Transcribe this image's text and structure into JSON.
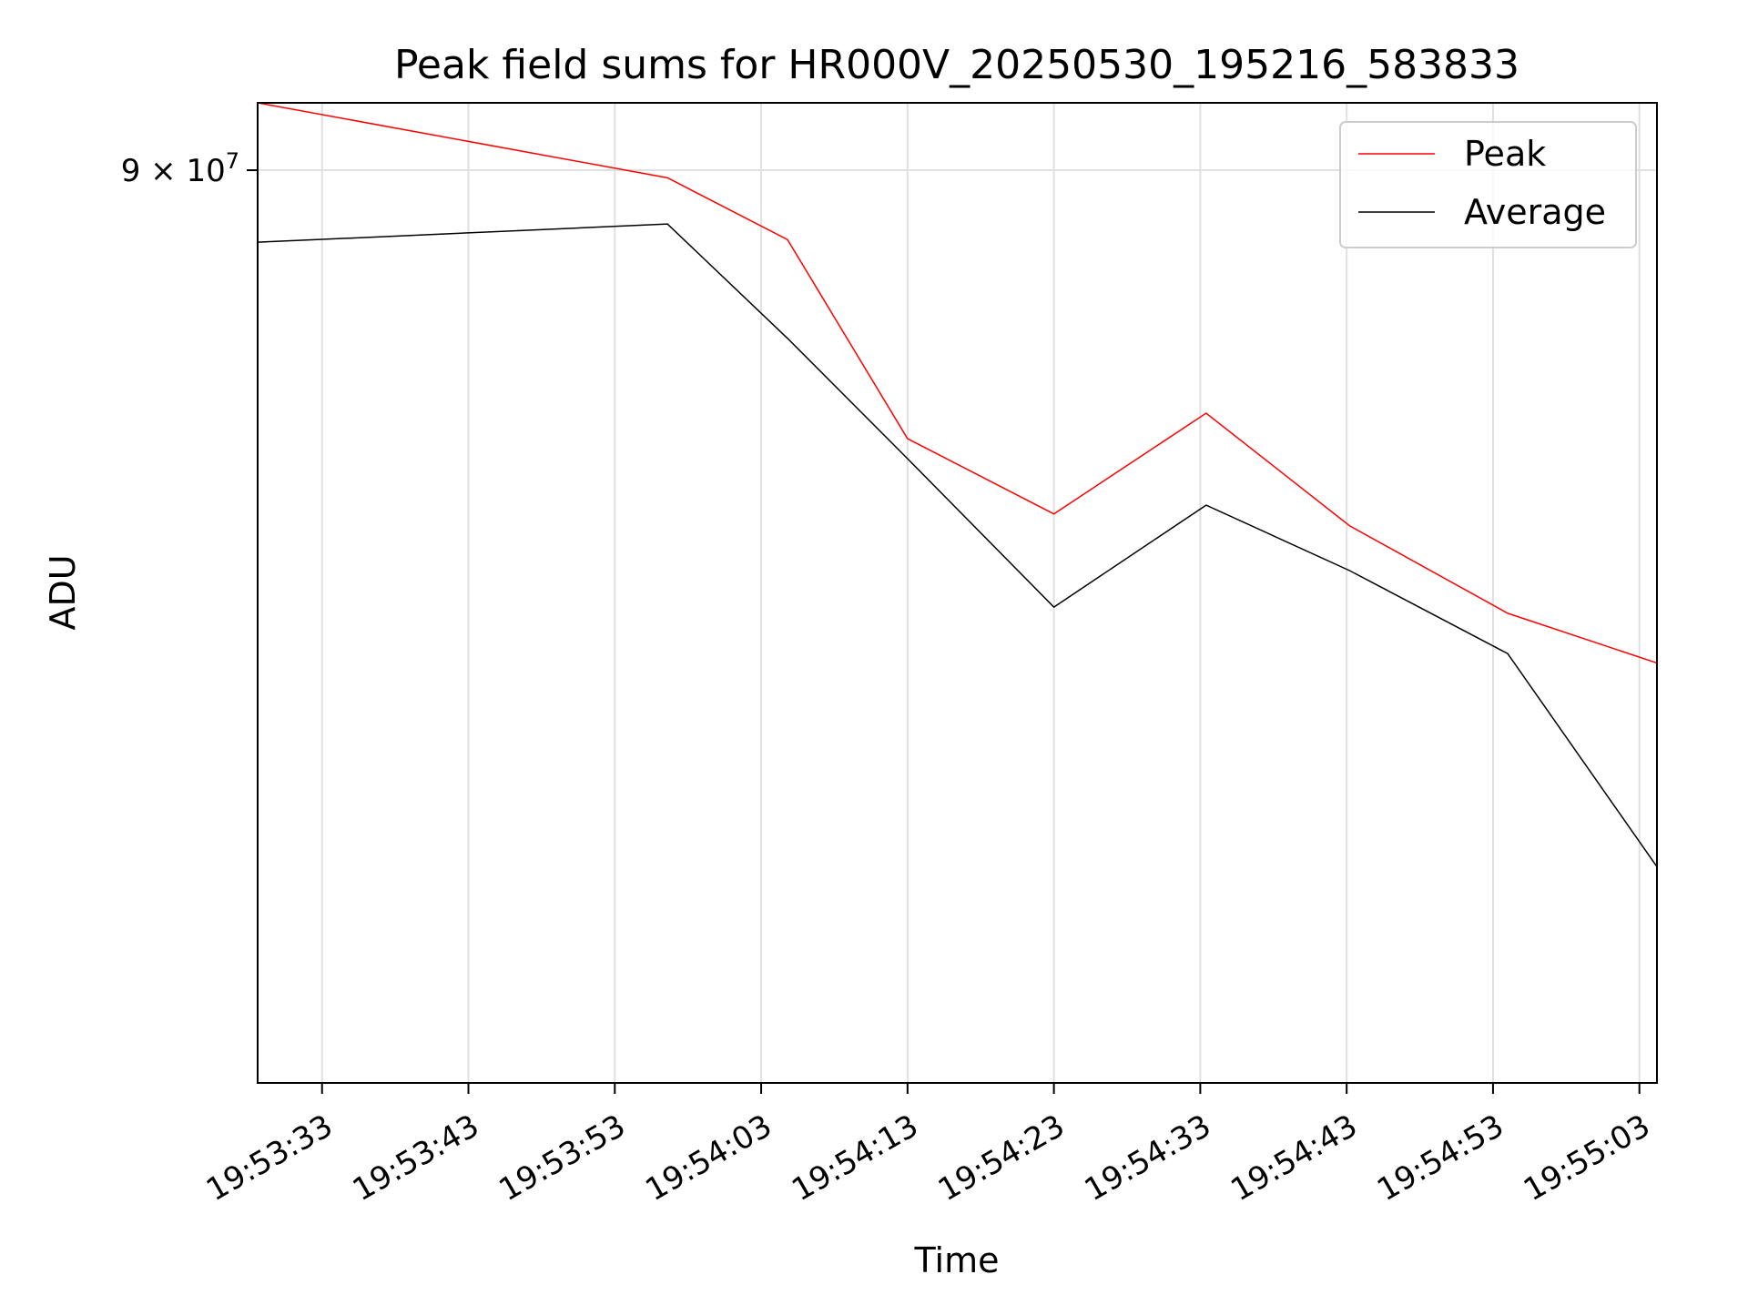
{
  "chart_data": {
    "type": "line",
    "title": "Peak field sums for HR000V_20250530_195216_583833",
    "xlabel": "Time",
    "ylabel": "ADU",
    "y_scale": "log",
    "x_tick_labels": [
      "19:53:33",
      "19:53:43",
      "19:53:53",
      "19:54:03",
      "19:54:13",
      "19:54:23",
      "19:54:33",
      "19:54:43",
      "19:54:53",
      "19:55:03"
    ],
    "y_tick_labels": [
      {
        "value": 90000000,
        "label_base": "9 × 10",
        "label_exp": "7"
      }
    ],
    "xlim": [
      "19:53:28.6",
      "19:55:04.2"
    ],
    "ylim": [
      60300000,
      92700000
    ],
    "grid": true,
    "legend_position": "top-right",
    "x": [
      "19:53:28.6",
      "19:53:56.6",
      "19:54:04.8",
      "19:54:13.0",
      "19:54:23.0",
      "19:54:33.4",
      "19:54:43.2",
      "19:54:54.0",
      "19:55:04.2"
    ],
    "series": [
      {
        "name": "Peak",
        "color": "#ff0000",
        "values": [
          92700000,
          89700000,
          87300000,
          80000000,
          77400000,
          80900000,
          77000000,
          74100000,
          72500000
        ]
      },
      {
        "name": "Average",
        "color": "#000000",
        "values": [
          87200000,
          87900000,
          83600000,
          79300000,
          74300000,
          77700000,
          75500000,
          72800000,
          66300000
        ]
      }
    ]
  }
}
